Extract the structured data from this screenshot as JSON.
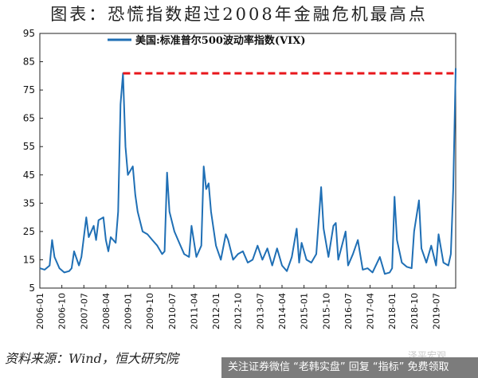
{
  "title": "图表：恐慌指数超过2008年金融危机最高点",
  "source": "资料来源：Wind，恒大研究院",
  "watermark": {
    "faint_text": "……泽平宏观",
    "banner_text": "关注证券微信 “老韩实盘” 回复 “指标” 免费领取"
  },
  "colors": {
    "series": "#1f6fb5",
    "reference": "#e8161b"
  },
  "chart_data": {
    "type": "line",
    "title": "图表：恐慌指数超过2008年金融危机最高点",
    "xlabel": "",
    "ylabel": "",
    "ylim": [
      5,
      95
    ],
    "yticks": [
      5,
      15,
      25,
      35,
      45,
      55,
      65,
      75,
      85,
      95
    ],
    "xlim": [
      "2006-01",
      "2020-03"
    ],
    "xticks": [
      "2006-01",
      "2006-10",
      "2007-07",
      "2008-04",
      "2009-01",
      "2009-10",
      "2010-07",
      "2011-04",
      "2012-01",
      "2012-10",
      "2013-07",
      "2014-04",
      "2015-01",
      "2015-10",
      "2016-07",
      "2017-04",
      "2018-01",
      "2018-10",
      "2019-07"
    ],
    "grid": false,
    "legend": "top-center",
    "series": [
      {
        "name": "美国:标准普尔500波动率指数(VIX)",
        "points": [
          [
            "2006-01",
            12
          ],
          [
            "2006-03",
            11.5
          ],
          [
            "2006-05",
            13
          ],
          [
            "2006-06",
            22
          ],
          [
            "2006-07",
            16
          ],
          [
            "2006-09",
            12
          ],
          [
            "2006-11",
            10.5
          ],
          [
            "2007-01",
            11
          ],
          [
            "2007-02",
            12
          ],
          [
            "2007-03",
            18
          ],
          [
            "2007-05",
            13
          ],
          [
            "2007-06",
            16
          ],
          [
            "2007-08",
            30
          ],
          [
            "2007-09",
            23
          ],
          [
            "2007-11",
            27
          ],
          [
            "2007-12",
            22
          ],
          [
            "2008-01",
            29
          ],
          [
            "2008-03",
            30
          ],
          [
            "2008-04",
            22
          ],
          [
            "2008-05",
            18
          ],
          [
            "2008-06",
            23
          ],
          [
            "2008-08",
            21
          ],
          [
            "2008-09",
            32
          ],
          [
            "2008-10",
            70
          ],
          [
            "2008-11",
            80.9
          ],
          [
            "2008-12",
            55
          ],
          [
            "2009-01",
            45
          ],
          [
            "2009-03",
            48
          ],
          [
            "2009-04",
            38
          ],
          [
            "2009-05",
            32
          ],
          [
            "2009-07",
            25
          ],
          [
            "2009-09",
            24
          ],
          [
            "2009-11",
            22
          ],
          [
            "2010-01",
            20
          ],
          [
            "2010-03",
            17
          ],
          [
            "2010-04",
            18
          ],
          [
            "2010-05",
            45.8
          ],
          [
            "2010-06",
            32
          ],
          [
            "2010-08",
            25
          ],
          [
            "2010-10",
            21
          ],
          [
            "2010-12",
            17
          ],
          [
            "2011-02",
            16
          ],
          [
            "2011-03",
            27
          ],
          [
            "2011-05",
            16
          ],
          [
            "2011-07",
            20
          ],
          [
            "2011-08",
            48
          ],
          [
            "2011-09",
            40
          ],
          [
            "2011-10",
            42
          ],
          [
            "2011-11",
            32
          ],
          [
            "2012-01",
            20
          ],
          [
            "2012-03",
            15
          ],
          [
            "2012-05",
            24
          ],
          [
            "2012-06",
            22
          ],
          [
            "2012-08",
            15
          ],
          [
            "2012-10",
            17
          ],
          [
            "2012-12",
            18
          ],
          [
            "2013-02",
            14
          ],
          [
            "2013-04",
            15
          ],
          [
            "2013-06",
            20
          ],
          [
            "2013-08",
            15
          ],
          [
            "2013-10",
            19
          ],
          [
            "2013-12",
            13
          ],
          [
            "2014-02",
            19
          ],
          [
            "2014-04",
            13
          ],
          [
            "2014-06",
            11
          ],
          [
            "2014-08",
            16
          ],
          [
            "2014-10",
            26
          ],
          [
            "2014-11",
            14
          ],
          [
            "2014-12",
            21
          ],
          [
            "2015-02",
            15
          ],
          [
            "2015-04",
            14
          ],
          [
            "2015-06",
            17
          ],
          [
            "2015-08",
            40.7
          ],
          [
            "2015-09",
            26
          ],
          [
            "2015-11",
            16
          ],
          [
            "2016-01",
            27
          ],
          [
            "2016-02",
            28
          ],
          [
            "2016-03",
            15
          ],
          [
            "2016-06",
            25
          ],
          [
            "2016-07",
            13
          ],
          [
            "2016-09",
            17
          ],
          [
            "2016-11",
            22
          ],
          [
            "2017-01",
            11.5
          ],
          [
            "2017-03",
            12
          ],
          [
            "2017-05",
            10.5
          ],
          [
            "2017-08",
            16
          ],
          [
            "2017-10",
            10
          ],
          [
            "2017-12",
            10.5
          ],
          [
            "2018-01",
            12
          ],
          [
            "2018-02",
            37.3
          ],
          [
            "2018-03",
            22
          ],
          [
            "2018-05",
            14
          ],
          [
            "2018-07",
            12.5
          ],
          [
            "2018-09",
            12
          ],
          [
            "2018-10",
            25
          ],
          [
            "2018-12",
            36
          ],
          [
            "2019-01",
            19
          ],
          [
            "2019-03",
            14
          ],
          [
            "2019-05",
            20
          ],
          [
            "2019-07",
            13
          ],
          [
            "2019-08",
            24
          ],
          [
            "2019-10",
            14
          ],
          [
            "2019-12",
            13
          ],
          [
            "2020-01",
            17
          ],
          [
            "2020-02",
            40
          ],
          [
            "2020-03",
            82.7
          ]
        ]
      }
    ],
    "reference_line": {
      "y": 80.9,
      "from": "2008-11",
      "to": "2020-03",
      "style": "dashed"
    }
  }
}
